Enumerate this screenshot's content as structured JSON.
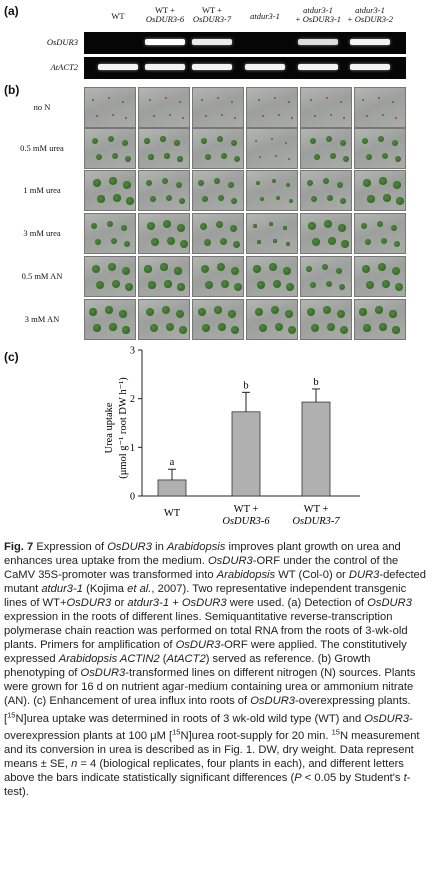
{
  "panel_a": {
    "label": "(a)",
    "lanes": [
      {
        "line1": "WT",
        "line2": ""
      },
      {
        "line1": "WT +",
        "line2": "OsDUR3-6"
      },
      {
        "line1": "WT +",
        "line2": "OsDUR3-7"
      },
      {
        "line1": "atdur3-1",
        "line2": ""
      },
      {
        "line1": "atdur3-1",
        "line2": "+ OsDUR3-1"
      },
      {
        "line1": "atdur3-1",
        "line2": "+ OsDUR3-2"
      }
    ],
    "gel_rows": [
      "OsDUR3",
      "AtACT2"
    ],
    "bands": {
      "OsDUR3": [
        0.0,
        1.0,
        0.85,
        0.0,
        0.75,
        0.9
      ],
      "AtACT2": [
        0.9,
        0.9,
        0.9,
        0.9,
        0.9,
        0.9
      ]
    }
  },
  "panel_b": {
    "label": "(b)",
    "rows": [
      "no N",
      "0.5 mM urea",
      "1 mM urea",
      "3 mM urea",
      "0.5 mM AN",
      "3 mM AN"
    ]
  },
  "panel_c": {
    "label": "(c)",
    "ylabel_line1": "Urea uptake",
    "ylabel_line2": "(μmol g⁻¹ root DW h⁻¹)"
  },
  "chart_data": {
    "type": "bar",
    "categories": [
      "WT",
      "WT + OsDUR3-6",
      "WT + OsDUR3-7"
    ],
    "category_lines": [
      [
        "WT",
        ""
      ],
      [
        "WT +",
        "OsDUR3-6"
      ],
      [
        "WT +",
        "OsDUR3-7"
      ]
    ],
    "values": [
      0.33,
      1.73,
      1.93
    ],
    "errors": [
      0.22,
      0.4,
      0.27
    ],
    "significance": [
      "a",
      "b",
      "b"
    ],
    "ylim": [
      0,
      3
    ],
    "yticks": [
      "0",
      "1",
      "2",
      "3"
    ],
    "ylabel": "Urea uptake (μmol g⁻¹ root DW h⁻¹)",
    "bar_color": "#b0b0b0"
  },
  "caption": {
    "fig": "Fig. 7",
    "segments": [
      {
        "t": " Expression of ",
        "s": ""
      },
      {
        "t": "OsDUR3",
        "s": "i"
      },
      {
        "t": " in ",
        "s": ""
      },
      {
        "t": "Arabidopsis",
        "s": "i"
      },
      {
        "t": " improves plant growth on urea and enhances urea uptake from the medium. ",
        "s": ""
      },
      {
        "t": "OsDUR3",
        "s": "i"
      },
      {
        "t": "-ORF under the control of the CaMV 35S-promoter was transformed into ",
        "s": ""
      },
      {
        "t": "Arabidopsis",
        "s": "i"
      },
      {
        "t": " WT (Col-0) or ",
        "s": ""
      },
      {
        "t": "DUR3",
        "s": "i"
      },
      {
        "t": "-defected mutant ",
        "s": ""
      },
      {
        "t": "atdur3-1",
        "s": "i"
      },
      {
        "t": " (Kojima ",
        "s": ""
      },
      {
        "t": "et al.",
        "s": "i"
      },
      {
        "t": ", 2007). Two representative independent transgenic lines of WT+",
        "s": ""
      },
      {
        "t": "OsDUR3",
        "s": "i"
      },
      {
        "t": " or ",
        "s": ""
      },
      {
        "t": "atdur3-1",
        "s": "i"
      },
      {
        "t": " + ",
        "s": ""
      },
      {
        "t": "OsDUR3",
        "s": "i"
      },
      {
        "t": " were used. (a) Detection of ",
        "s": ""
      },
      {
        "t": "OsDUR3",
        "s": "i"
      },
      {
        "t": " expression in the roots of different lines. Semiquantitative reverse-transcription polymerase chain reaction was performed on total RNA from the roots of 3-wk-old plants. Primers for amplification of ",
        "s": ""
      },
      {
        "t": "OsDUR3",
        "s": "i"
      },
      {
        "t": "-ORF were applied. The constitutively expressed ",
        "s": ""
      },
      {
        "t": "Arabidopsis ACTIN2",
        "s": "i"
      },
      {
        "t": " (",
        "s": ""
      },
      {
        "t": "AtACT2",
        "s": "i"
      },
      {
        "t": ") served as reference. (b) Growth phenotyping of ",
        "s": ""
      },
      {
        "t": "OsDUR3",
        "s": "i"
      },
      {
        "t": "-transformed lines on different nitrogen (N) sources. Plants were grown for 16 d on nutrient agar-medium containing urea or ammonium nitrate (AN). (c) Enhancement of urea influx into roots of ",
        "s": ""
      },
      {
        "t": "OsDUR3",
        "s": "i"
      },
      {
        "t": "-overexpressing plants. [",
        "s": ""
      },
      {
        "t": "15",
        "s": "sup"
      },
      {
        "t": "N]urea uptake was determined in roots of 3 wk-old wild type (WT) and ",
        "s": ""
      },
      {
        "t": "OsDUR3",
        "s": "i"
      },
      {
        "t": "-overexpression plants at 100 μM [",
        "s": ""
      },
      {
        "t": "15",
        "s": "sup"
      },
      {
        "t": "N]urea root-supply for 20 min. ",
        "s": ""
      },
      {
        "t": "15",
        "s": "sup"
      },
      {
        "t": "N measurement and its conversion in urea is described as in Fig. 1. DW, dry weight. Data represent means ± SE, ",
        "s": ""
      },
      {
        "t": "n",
        "s": "i"
      },
      {
        "t": " = 4 (biological replicates, four plants in each), and different letters above the bars indicate statistically significant differences (",
        "s": ""
      },
      {
        "t": "P",
        "s": "i"
      },
      {
        "t": " < 0.05 by Student's ",
        "s": ""
      },
      {
        "t": "t",
        "s": "i"
      },
      {
        "t": "-test).",
        "s": ""
      }
    ]
  }
}
